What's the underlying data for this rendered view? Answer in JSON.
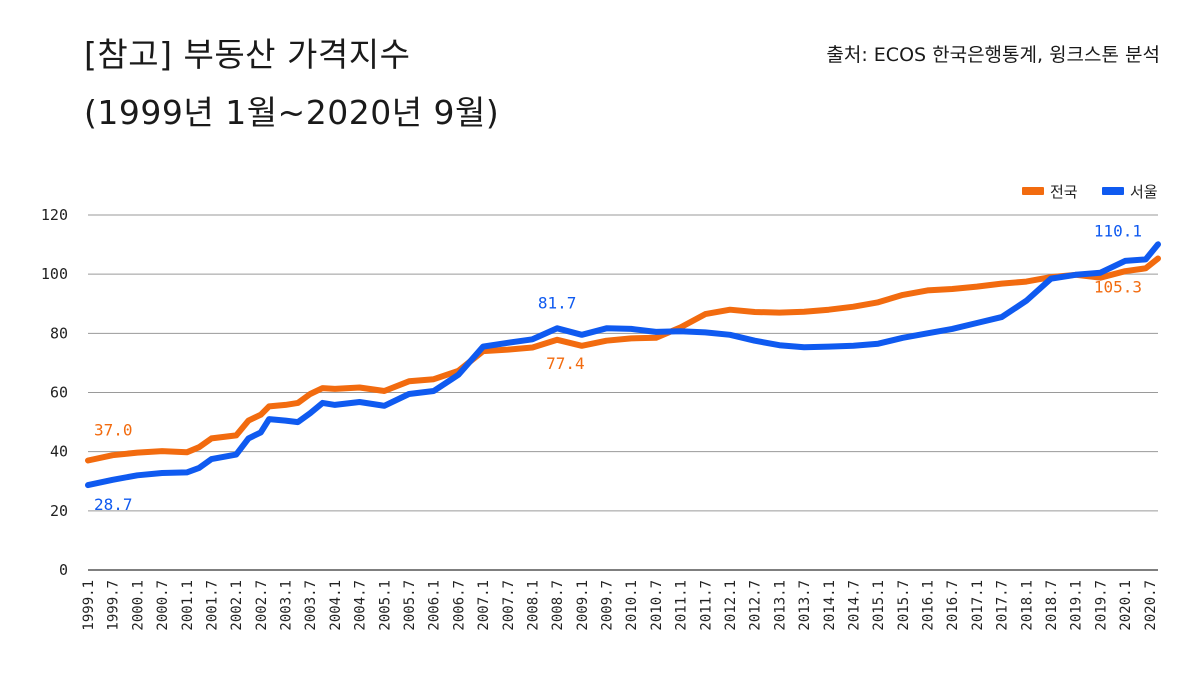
{
  "title_line1": "[참고] 부동산 가격지수",
  "title_line2": "(1999년 1월~2020년 9월)",
  "source": "출처: ECOS 한국은행통계, 윙크스톤 분석",
  "colors": {
    "national": "#F26B0F",
    "seoul": "#0F5AF0",
    "grid": "#9a9a9a",
    "axis": "#333333"
  },
  "chart_data": {
    "type": "line",
    "legend_position": "top-right",
    "grid": true,
    "ylim": [
      0,
      120
    ],
    "yticks": [
      "0",
      "20",
      "40",
      "60",
      "80",
      "100",
      "120"
    ],
    "xlim": [
      "1999.1",
      "2020.9"
    ],
    "x_tick_labels": [
      "1999.1",
      "1999.7",
      "2000.1",
      "2000.7",
      "2001.1",
      "2001.7",
      "2002.1",
      "2002.7",
      "2003.1",
      "2003.7",
      "2004.1",
      "2004.7",
      "2005.1",
      "2005.7",
      "2006.1",
      "2006.7",
      "2007.1",
      "2007.7",
      "2008.1",
      "2008.7",
      "2009.1",
      "2009.7",
      "2010.1",
      "2010.7",
      "2011.1",
      "2011.7",
      "2012.1",
      "2012.7",
      "2013.1",
      "2013.7",
      "2014.1",
      "2014.7",
      "2015.1",
      "2015.7",
      "2016.1",
      "2016.7",
      "2017.1",
      "2017.7",
      "2018.1",
      "2018.7",
      "2019.1",
      "2019.7",
      "2020.1",
      "2020.7"
    ],
    "series": [
      {
        "name": "전국",
        "color": "#F26B0F",
        "points": [
          [
            "1999.1",
            37.0
          ],
          [
            "1999.7",
            38.8
          ],
          [
            "2000.1",
            39.7
          ],
          [
            "2000.7",
            40.2
          ],
          [
            "2001.1",
            39.8
          ],
          [
            "2001.4",
            41.5
          ],
          [
            "2001.7",
            44.5
          ],
          [
            "2002.1",
            45.5
          ],
          [
            "2002.4",
            50.5
          ],
          [
            "2002.7",
            52.5
          ],
          [
            "2002.9",
            55.3
          ],
          [
            "2003.1",
            55.8
          ],
          [
            "2003.4",
            56.5
          ],
          [
            "2003.7",
            59.5
          ],
          [
            "2003.10",
            61.5
          ],
          [
            "2004.1",
            61.2
          ],
          [
            "2004.7",
            61.7
          ],
          [
            "2005.1",
            60.5
          ],
          [
            "2005.7",
            63.8
          ],
          [
            "2006.1",
            64.5
          ],
          [
            "2006.7",
            67.3
          ],
          [
            "2007.1",
            74.0
          ],
          [
            "2007.7",
            74.5
          ],
          [
            "2008.1",
            75.2
          ],
          [
            "2008.7",
            77.8
          ],
          [
            "2009.1",
            75.8
          ],
          [
            "2009.7",
            77.5
          ],
          [
            "2010.1",
            78.3
          ],
          [
            "2010.7",
            78.5
          ],
          [
            "2011.1",
            82.0
          ],
          [
            "2011.7",
            86.5
          ],
          [
            "2012.1",
            88.0
          ],
          [
            "2012.7",
            87.2
          ],
          [
            "2013.1",
            87.0
          ],
          [
            "2013.7",
            87.3
          ],
          [
            "2014.1",
            88.0
          ],
          [
            "2014.7",
            89.0
          ],
          [
            "2015.1",
            90.5
          ],
          [
            "2015.7",
            93.0
          ],
          [
            "2016.1",
            94.5
          ],
          [
            "2016.7",
            95.0
          ],
          [
            "2017.1",
            95.8
          ],
          [
            "2017.7",
            96.8
          ],
          [
            "2018.1",
            97.5
          ],
          [
            "2018.7",
            99.0
          ],
          [
            "2019.1",
            99.8
          ],
          [
            "2019.7",
            98.8
          ],
          [
            "2020.1",
            101.0
          ],
          [
            "2020.6",
            102.0
          ],
          [
            "2020.9",
            105.3
          ]
        ]
      },
      {
        "name": "서울",
        "color": "#0F5AF0",
        "points": [
          [
            "1999.1",
            28.7
          ],
          [
            "1999.7",
            30.5
          ],
          [
            "2000.1",
            32.0
          ],
          [
            "2000.7",
            32.8
          ],
          [
            "2001.1",
            33.0
          ],
          [
            "2001.4",
            34.5
          ],
          [
            "2001.7",
            37.5
          ],
          [
            "2002.1",
            39.0
          ],
          [
            "2002.4",
            44.5
          ],
          [
            "2002.7",
            46.5
          ],
          [
            "2002.9",
            51.0
          ],
          [
            "2003.1",
            50.5
          ],
          [
            "2003.4",
            50.0
          ],
          [
            "2003.7",
            53.0
          ],
          [
            "2003.10",
            56.5
          ],
          [
            "2004.1",
            55.8
          ],
          [
            "2004.7",
            56.8
          ],
          [
            "2005.1",
            55.5
          ],
          [
            "2005.7",
            59.5
          ],
          [
            "2006.1",
            60.5
          ],
          [
            "2006.7",
            66.0
          ],
          [
            "2007.1",
            75.5
          ],
          [
            "2007.7",
            76.8
          ],
          [
            "2008.1",
            78.0
          ],
          [
            "2008.7",
            81.7
          ],
          [
            "2009.1",
            79.5
          ],
          [
            "2009.7",
            81.7
          ],
          [
            "2010.1",
            81.5
          ],
          [
            "2010.7",
            80.5
          ],
          [
            "2011.1",
            80.7
          ],
          [
            "2011.7",
            80.3
          ],
          [
            "2012.1",
            79.5
          ],
          [
            "2012.7",
            77.5
          ],
          [
            "2013.1",
            76.0
          ],
          [
            "2013.7",
            75.3
          ],
          [
            "2014.1",
            75.5
          ],
          [
            "2014.7",
            75.8
          ],
          [
            "2015.1",
            76.5
          ],
          [
            "2015.7",
            78.5
          ],
          [
            "2016.1",
            80.0
          ],
          [
            "2016.7",
            81.5
          ],
          [
            "2017.1",
            83.5
          ],
          [
            "2017.7",
            85.5
          ],
          [
            "2018.1",
            91.0
          ],
          [
            "2018.7",
            98.5
          ],
          [
            "2019.1",
            99.8
          ],
          [
            "2019.7",
            100.5
          ],
          [
            "2020.1",
            104.5
          ],
          [
            "2020.6",
            105.0
          ],
          [
            "2020.9",
            110.1
          ]
        ]
      }
    ],
    "annotations": [
      {
        "text": "37.0",
        "series": "전국",
        "at": "start"
      },
      {
        "text": "28.7",
        "series": "서울",
        "at": "start"
      },
      {
        "text": "81.7",
        "series": "서울",
        "at": "2008.7"
      },
      {
        "text": "77.4",
        "series": "전국",
        "at": "2008.9"
      },
      {
        "text": "110.1",
        "series": "서울",
        "at": "end"
      },
      {
        "text": "105.3",
        "series": "전국",
        "at": "end"
      }
    ]
  }
}
